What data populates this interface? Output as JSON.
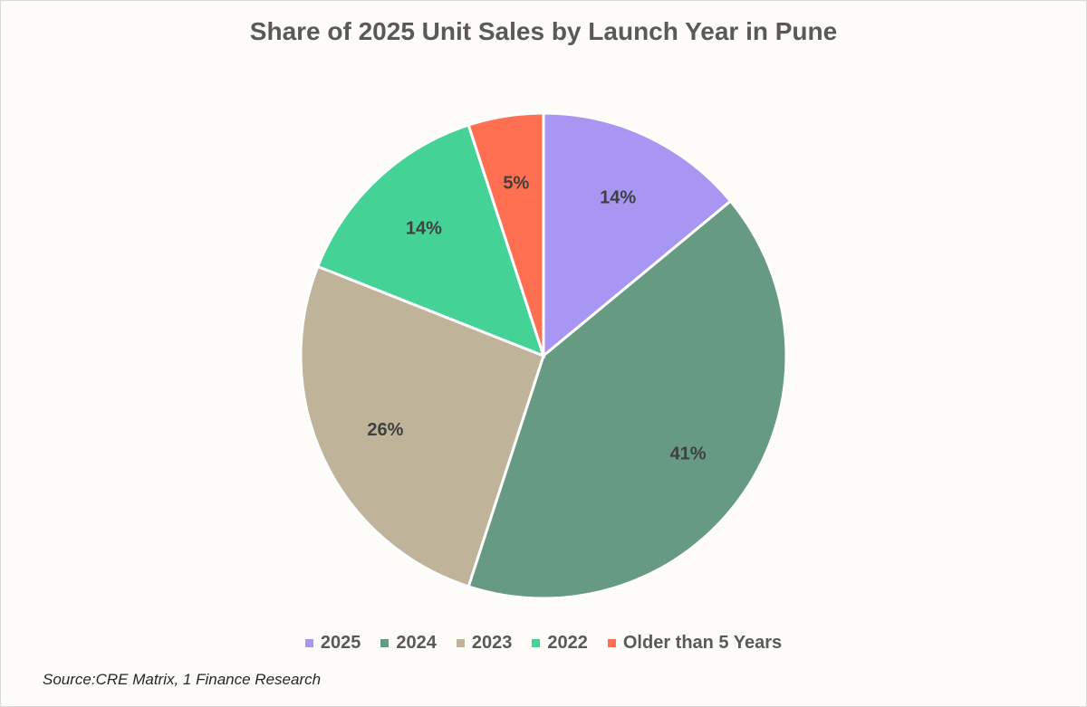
{
  "chart_data": {
    "type": "pie",
    "title": "Share of 2025 Unit Sales by Launch Year in Pune",
    "categories": [
      "2025",
      "2024",
      "2023",
      "2022",
      "Older than 5 Years"
    ],
    "values": [
      14,
      41,
      26,
      14,
      5
    ],
    "labels": [
      "14%",
      "41%",
      "26%",
      "14%",
      "5%"
    ],
    "colors": [
      "#a797f3",
      "#679a83",
      "#bfb49a",
      "#45d296",
      "#ff7052"
    ],
    "legend_position": "bottom"
  },
  "source": "Source:CRE Matrix, 1 Finance Research"
}
